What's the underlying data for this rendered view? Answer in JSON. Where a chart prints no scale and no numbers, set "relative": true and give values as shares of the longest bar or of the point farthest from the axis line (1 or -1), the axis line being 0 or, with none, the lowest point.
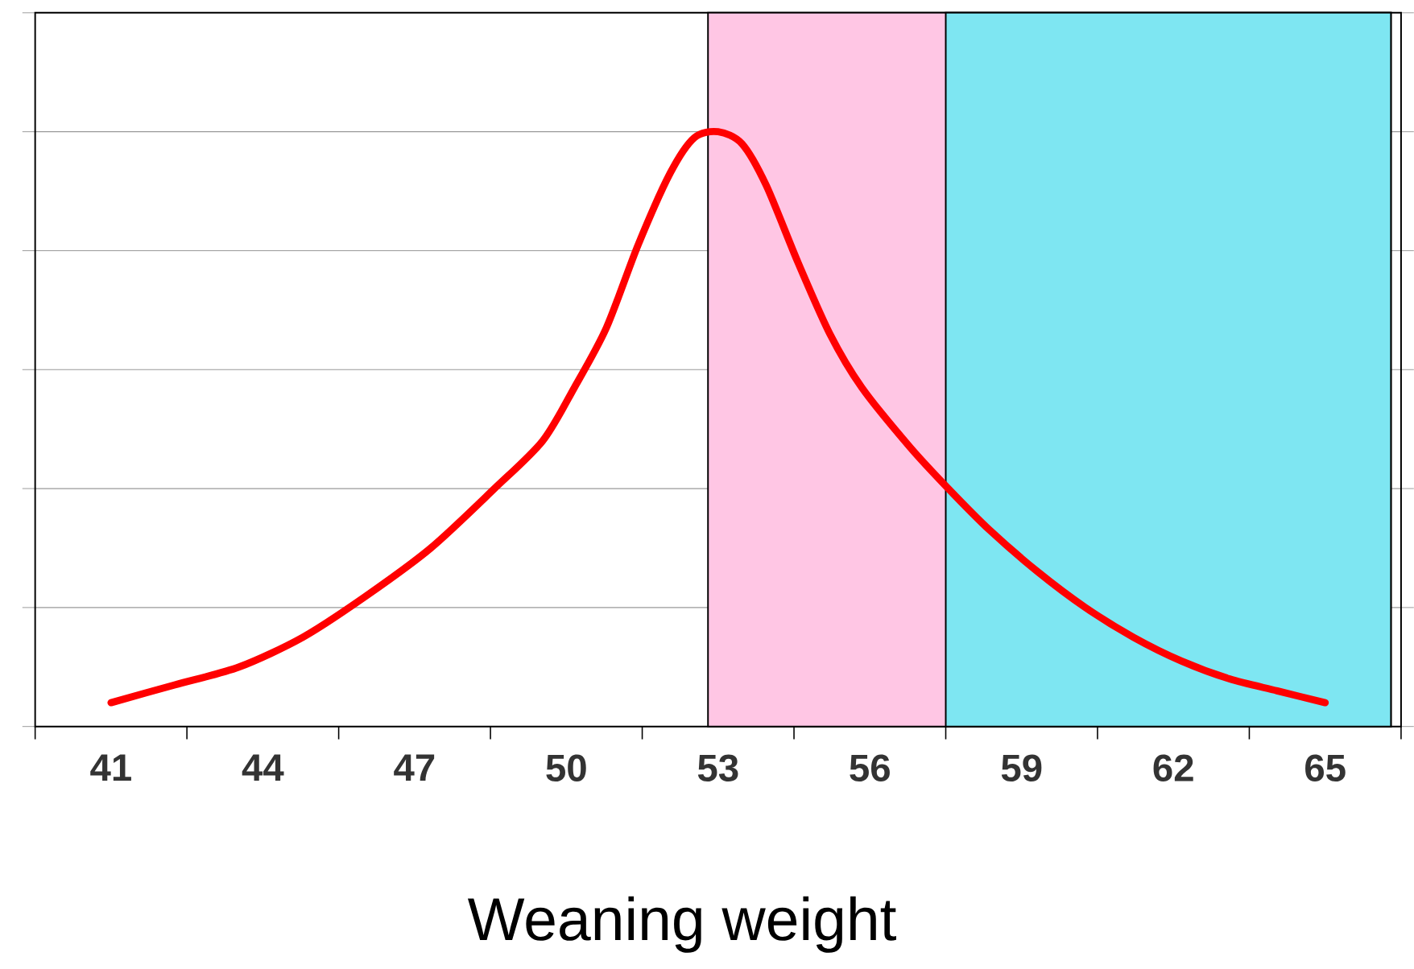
{
  "chart_data": {
    "type": "line",
    "relative": true,
    "xlabel": "Weaning weight",
    "x": [
      41,
      42.26,
      43.53,
      44.79,
      46.05,
      47.32,
      48.58,
      49.53,
      50.16,
      50.79,
      51.42,
      52.05,
      52.53,
      53.0,
      53.47,
      53.95,
      54.58,
      55.21,
      55.84,
      56.79,
      57.55,
      58.37,
      59.32,
      60.26,
      61.21,
      62.16,
      63.11,
      64.05,
      65.0
    ],
    "series": [
      {
        "color": "#ff0000",
        "values": [
          0.04,
          0.07,
          0.1,
          0.15,
          0.22,
          0.3,
          0.4,
          0.48,
          0.57,
          0.67,
          0.81,
          0.93,
          0.99,
          1.0,
          0.98,
          0.91,
          0.78,
          0.66,
          0.57,
          0.47,
          0.4,
          0.33,
          0.26,
          0.2,
          0.15,
          0.11,
          0.08,
          0.06,
          0.04
        ]
      }
    ],
    "xlim": [
      39.5,
      66.5
    ],
    "xticks": [
      41,
      44,
      47,
      50,
      53,
      56,
      59,
      62,
      65,
      {
        "value": 39.5,
        "label": null
      },
      {
        "value": 42.5,
        "label": null
      },
      {
        "value": 45.5,
        "label": null
      },
      {
        "value": 48.5,
        "label": null
      },
      {
        "value": 51.5,
        "label": null
      },
      {
        "value": 54.5,
        "label": null
      },
      {
        "value": 57.5,
        "label": null
      },
      {
        "value": 60.5,
        "label": null
      },
      {
        "value": 63.5,
        "label": null
      },
      {
        "value": 66.5,
        "label": null
      }
    ],
    "grid": "y",
    "tick_labels": "x",
    "marker": "none",
    "line_style": "solid",
    "bands": [
      {
        "axis": "x",
        "from": 52.8,
        "to": 66.3,
        "color": "#ffc6e4"
      },
      {
        "axis": "x",
        "from": 57.5,
        "to": 66.3,
        "color": "#7ee6f2"
      }
    ]
  }
}
